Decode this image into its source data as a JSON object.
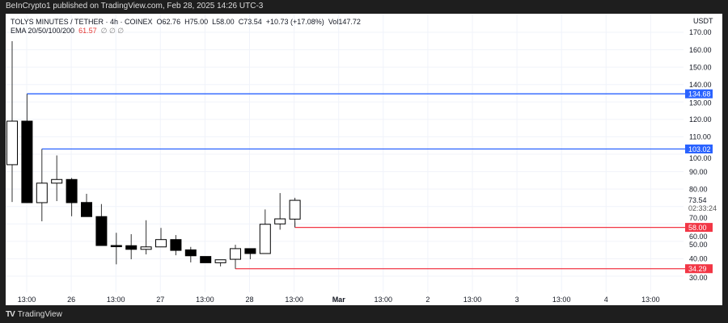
{
  "header": {
    "published": "BeInCrypto1 published on TradingView.com, Feb 28, 2025 14:26 UTC-3"
  },
  "legend": {
    "symbol": "TOLYS MINUTES / TETHER · 4h · COINEX",
    "open": "O62.76",
    "high": "H75.00",
    "low": "L58.00",
    "close": "C73.54",
    "change": "+10.73 (+17.08%)",
    "volume": "Vol147.72",
    "ema_label": "EMA 20/50/100/200",
    "ema_value": "61.57",
    "ema_rest": "∅ ∅ ∅"
  },
  "footer": {
    "brand": "TradingView",
    "logo_text": "TV"
  },
  "colors": {
    "up_body": "#ffffff",
    "down_body": "#000000",
    "resistance": "#2962ff",
    "support": "#f23645",
    "ema": "#e53935"
  },
  "chart_data": {
    "type": "candlestick",
    "currency": "USDT",
    "ylim": [
      30,
      170
    ],
    "y_ticks": [
      170,
      160,
      150,
      140,
      130,
      120,
      110,
      100,
      90,
      80,
      70,
      60,
      50,
      40,
      30
    ],
    "x_ticks": [
      "13:00",
      "26",
      "13:00",
      "27",
      "13:00",
      "28",
      "13:00",
      "Mar",
      "13:00",
      "2",
      "13:00",
      "3",
      "13:00",
      "4",
      "13:00"
    ],
    "candles": [
      {
        "o": 94.0,
        "h": 164.9,
        "l": 72.6,
        "c": 119.0
      },
      {
        "o": 119.0,
        "h": 134.68,
        "l": 72.0,
        "c": 72.2
      },
      {
        "o": 72.2,
        "h": 103.02,
        "l": 61.5,
        "c": 83.4
      },
      {
        "o": 83.4,
        "h": 99.3,
        "l": 73.1,
        "c": 85.5
      },
      {
        "o": 85.5,
        "h": 86.4,
        "l": 64.4,
        "c": 72.2
      },
      {
        "o": 72.3,
        "h": 77.3,
        "l": 64.2,
        "c": 64.2
      },
      {
        "o": 64.2,
        "h": 71.4,
        "l": 47.6,
        "c": 47.6
      },
      {
        "o": 47.6,
        "h": 54.9,
        "l": 36.8,
        "c": 47.2
      },
      {
        "o": 47.5,
        "h": 54.1,
        "l": 39.7,
        "c": 45.4
      },
      {
        "o": 45.4,
        "h": 62.1,
        "l": 42.5,
        "c": 46.8
      },
      {
        "o": 46.8,
        "h": 57.7,
        "l": 46.8,
        "c": 51.0
      },
      {
        "o": 51.0,
        "h": 53.6,
        "l": 42.0,
        "c": 44.8
      },
      {
        "o": 45.1,
        "h": 46.8,
        "l": 37.9,
        "c": 41.7
      },
      {
        "o": 41.3,
        "h": 41.3,
        "l": 37.7,
        "c": 37.7
      },
      {
        "o": 37.7,
        "h": 39.4,
        "l": 35.6,
        "c": 39.4
      },
      {
        "o": 39.7,
        "h": 48.0,
        "l": 34.29,
        "c": 45.8
      },
      {
        "o": 45.8,
        "h": 45.8,
        "l": 39.7,
        "c": 43.0
      },
      {
        "o": 43.0,
        "h": 68.3,
        "l": 43.0,
        "c": 59.8
      },
      {
        "o": 60.0,
        "h": 77.7,
        "l": 56.7,
        "c": 62.9
      },
      {
        "o": 62.76,
        "h": 75.0,
        "l": 58.0,
        "c": 73.54
      }
    ],
    "levels": [
      {
        "value": 134.68,
        "label": "134.68",
        "kind": "resistance",
        "from_candle": 1
      },
      {
        "value": 103.02,
        "label": "103.02",
        "kind": "resistance",
        "from_candle": 2
      },
      {
        "value": 58.0,
        "label": "58.00",
        "kind": "support",
        "from_candle": 19
      },
      {
        "value": 34.29,
        "label": "34.29",
        "kind": "support",
        "from_candle": 15
      }
    ],
    "last_price": {
      "value": 73.54,
      "label": "73.54",
      "countdown": "02:33:24"
    }
  }
}
